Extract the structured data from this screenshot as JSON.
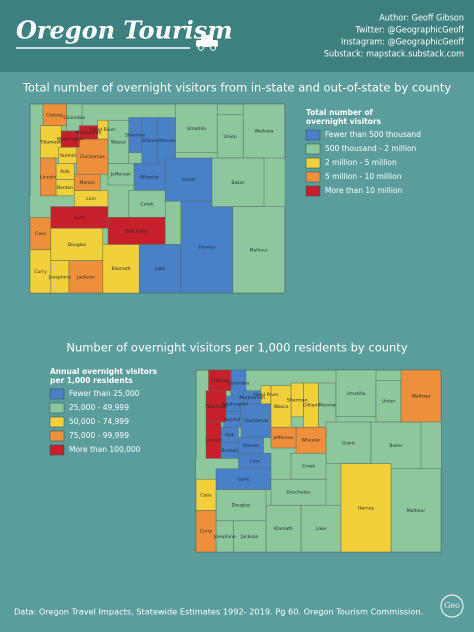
{
  "header": {
    "title": "Oregon Tourism",
    "credits": [
      "Author: Geoff Gibson",
      "Twitter: @GeographicGeoff",
      "Instagram: @GeographicGeoff",
      "Substack: mapstack.substack.com"
    ]
  },
  "maps": [
    {
      "title": "Total number of overnight visitors from in-state and out-of-state by county",
      "legend": {
        "title_lines": [
          "Total number of",
          "overnight visitors"
        ],
        "items": [
          {
            "label": "Fewer than 500 thousand",
            "color": "#4a80c8",
            "counties": [
              "Sherman",
              "Gilliam",
              "Morrow",
              "Wheeler",
              "Grant",
              "Harney",
              "Lake"
            ]
          },
          {
            "label": "500 thousand - 2 million",
            "color": "#8fc79d",
            "counties": [
              "Columbia",
              "Wasco",
              "Umatilla",
              "Union",
              "Wallowa",
              "Baker",
              "Malheur",
              "Crook",
              "Jefferson"
            ]
          },
          {
            "label": "2 million - 5 million",
            "color": "#f2cf3b",
            "counties": [
              "Tillamook",
              "Yamhill",
              "Polk",
              "Benton",
              "Linn",
              "Hood River",
              "Douglas",
              "Josephine",
              "Curry",
              "Klamath"
            ]
          },
          {
            "label": "5 million - 10 million",
            "color": "#ef8f3c",
            "counties": [
              "Clatsop",
              "Clackamas",
              "Marion",
              "Lincoln",
              "Jackson",
              "Coos"
            ]
          },
          {
            "label": "More than 10 million",
            "color": "#c8202a",
            "counties": [
              "Multnomah",
              "Washington",
              "Lane",
              "Deschutes"
            ]
          }
        ]
      }
    },
    {
      "title": "Number of overnight visitors per 1,000 residents by county",
      "legend": {
        "title_lines": [
          "Annual overnight visitors",
          "per 1,000 residents"
        ],
        "items": [
          {
            "label": "Fewer than 25,000",
            "color": "#4a80c8",
            "counties": [
              "Columbia",
              "Washington",
              "Multnomah",
              "Clackamas",
              "Yamhill",
              "Polk",
              "Marion",
              "Benton",
              "Linn",
              "Lane"
            ]
          },
          {
            "label": "25,000 - 49,999",
            "color": "#8fc79d",
            "counties": [
              "Morrow",
              "Umatilla",
              "Union",
              "Grant",
              "Baker",
              "Malheur",
              "Crook",
              "Deschutes",
              "Lake",
              "Klamath",
              "Jackson",
              "Josephine",
              "Douglas"
            ]
          },
          {
            "label": "50,000 - 74,999",
            "color": "#f2cf3b",
            "counties": [
              "Hood River",
              "Sherman",
              "Gilliam",
              "Wasco",
              "Harney",
              "Coos"
            ]
          },
          {
            "label": "75,000 - 99,999",
            "color": "#ef8f3c",
            "counties": [
              "Wheeler",
              "Wallowa",
              "Jefferson",
              "Curry"
            ]
          },
          {
            "label": "More than 100,000",
            "color": "#c8202a",
            "counties": [
              "Clatsop",
              "Tillamook",
              "Lincoln"
            ]
          }
        ]
      }
    }
  ],
  "source": "Data: Oregon Travel Impacts, Statewide Estimates 1992- 2019. Pg 60. Oregon Tourism Commission.",
  "logo": "Geo"
}
